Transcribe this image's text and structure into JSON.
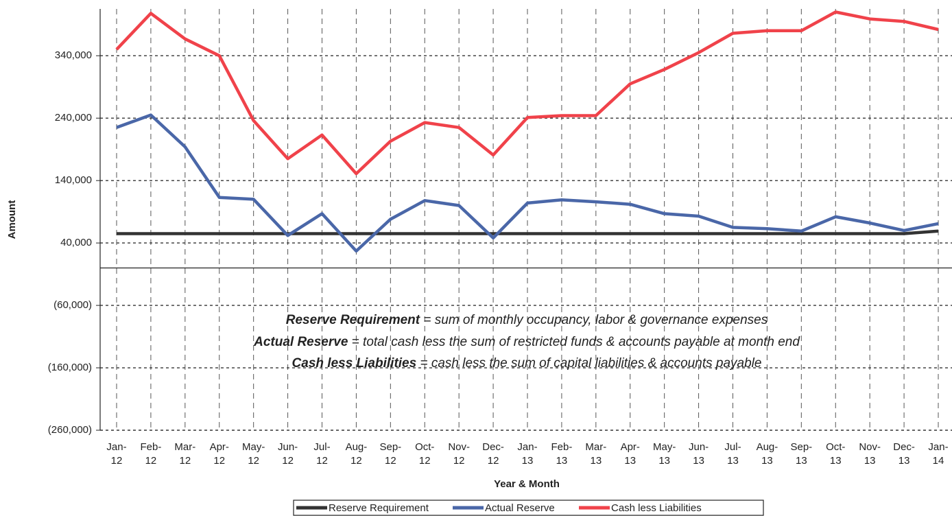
{
  "chart_data": {
    "type": "line",
    "x_label": "Year & Month",
    "y_label": "Amount",
    "categories": [
      "Jan-12",
      "Feb-12",
      "Mar-12",
      "Apr-12",
      "May-12",
      "Jun-12",
      "Jul-12",
      "Aug-12",
      "Sep-12",
      "Oct-12",
      "Nov-12",
      "Dec-12",
      "Jan-13",
      "Feb-13",
      "Mar-13",
      "Apr-13",
      "May-13",
      "Jun-13",
      "Jul-13",
      "Aug-13",
      "Sep-13",
      "Oct-13",
      "Nov-13",
      "Dec-13",
      "Jan-14"
    ],
    "series": [
      {
        "name": "Reserve Requirement",
        "color": "#333333",
        "values": [
          55000,
          55000,
          55000,
          55000,
          55000,
          55000,
          55000,
          55000,
          55000,
          55000,
          55000,
          55000,
          55000,
          55000,
          55000,
          55000,
          55000,
          55000,
          55000,
          55000,
          55000,
          55000,
          55000,
          55000,
          59000
        ]
      },
      {
        "name": "Actual Reserve",
        "color": "#4a67a8",
        "values": [
          225000,
          245000,
          194000,
          113000,
          110000,
          52000,
          87000,
          27000,
          78000,
          108000,
          100000,
          48000,
          104000,
          109000,
          106000,
          102000,
          87000,
          83000,
          65000,
          63000,
          59000,
          82000,
          72000,
          60000,
          71000
        ]
      },
      {
        "name": "Cash less Liabilities",
        "color": "#f0424a",
        "values": [
          350000,
          408000,
          367000,
          340000,
          236000,
          175000,
          213000,
          151000,
          203000,
          233000,
          225000,
          181000,
          241000,
          244000,
          244000,
          295000,
          318000,
          345000,
          376000,
          380000,
          380000,
          410000,
          399000,
          395000,
          382000
        ]
      }
    ],
    "ylim": [
      -260000,
      415000
    ],
    "yticks": [
      {
        "value": -260000,
        "label": "(260,000)"
      },
      {
        "value": -160000,
        "label": "(160,000)"
      },
      {
        "value": -60000,
        "label": "(60,000)"
      },
      {
        "value": 40000,
        "label": "40,000"
      },
      {
        "value": 140000,
        "label": "140,000"
      },
      {
        "value": 240000,
        "label": "240,000"
      },
      {
        "value": 340000,
        "label": "340,000"
      }
    ],
    "grid": true,
    "legend": "bottom",
    "annotations": [
      {
        "term": "Reserve Requirement",
        "definition": " = sum of monthly occupancy, labor & governance expenses"
      },
      {
        "term": "Actual Reserve",
        "definition": " = total cash less the sum of restricted funds & accounts payable at month end"
      },
      {
        "term": "Cash less Liabilities",
        "definition": " = cash less the sum of capital liabilities & accounts payable"
      }
    ]
  }
}
